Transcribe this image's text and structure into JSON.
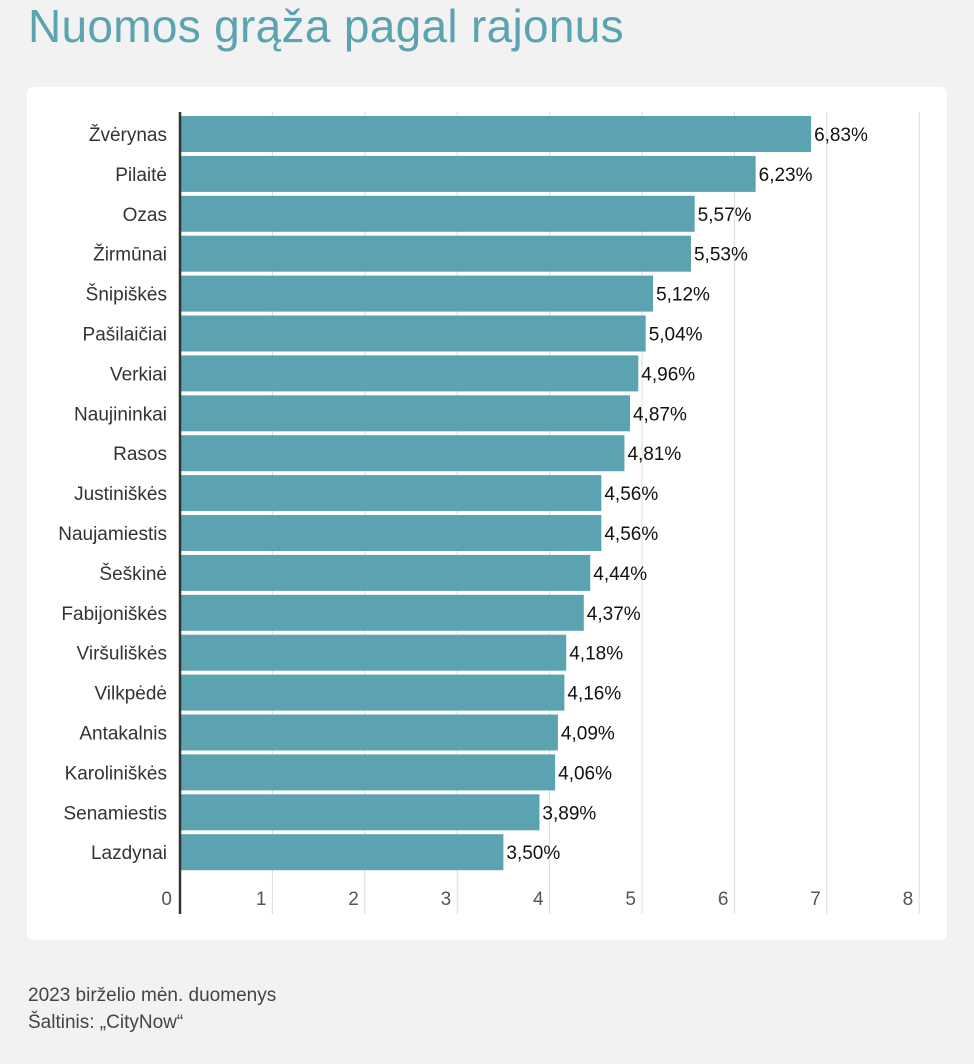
{
  "title": "Nuomos grąža pagal rajonus",
  "footer": {
    "note": "2023 birželio mėn. duomenys",
    "source": "Šaltinis: „CityNow“"
  },
  "colors": {
    "bar": "#5ba3b0",
    "title": "#5ba3b0",
    "background": "#f2f2f2",
    "card": "#ffffff",
    "grid": "#dddddd",
    "axis": "#333333"
  },
  "chart_data": {
    "type": "bar",
    "orientation": "horizontal",
    "categories": [
      "Žvėrynas",
      "Pilaitė",
      "Ozas",
      "Žirmūnai",
      "Šnipiškės",
      "Pašilaičiai",
      "Verkiai",
      "Naujininkai",
      "Rasos",
      "Justiniškės",
      "Naujamiestis",
      "Šeškinė",
      "Fabijoniškės",
      "Viršuliškės",
      "Vilkpėdė",
      "Antakalnis",
      "Karoliniškės",
      "Senamiestis",
      "Lazdynai"
    ],
    "values": [
      6.83,
      6.23,
      5.57,
      5.53,
      5.12,
      5.04,
      4.96,
      4.87,
      4.81,
      4.56,
      4.56,
      4.44,
      4.37,
      4.18,
      4.16,
      4.09,
      4.06,
      3.89,
      3.5
    ],
    "value_labels": [
      "6,83%",
      "6,23%",
      "5,57%",
      "5,53%",
      "5,12%",
      "5,04%",
      "4,96%",
      "4,87%",
      "4,81%",
      "4,56%",
      "4,56%",
      "4,44%",
      "4,37%",
      "4,18%",
      "4,16%",
      "4,09%",
      "4,06%",
      "3,89%",
      "3,50%"
    ],
    "xlim": [
      0,
      8
    ],
    "xticks": [
      "0",
      "1",
      "2",
      "3",
      "4",
      "5",
      "6",
      "7",
      "8"
    ],
    "grid": true,
    "legend": false
  }
}
